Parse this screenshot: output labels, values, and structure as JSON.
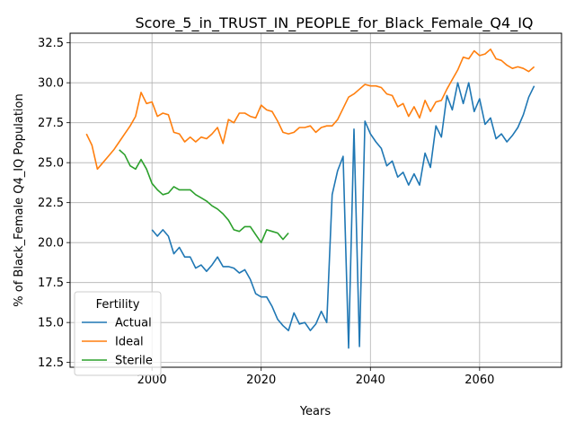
{
  "chart_data": {
    "type": "line",
    "title": "Score_5_in_TRUST_IN_PEOPLE_for_Black_Female_Q4_IQ",
    "xlabel": "Years",
    "ylabel": "% of Black_Female Q4_IQ Population",
    "xlim": [
      1985,
      2075
    ],
    "ylim": [
      12.2,
      33.1
    ],
    "xticks": [
      2000,
      2020,
      2040,
      2060
    ],
    "yticks": [
      12.5,
      15.0,
      17.5,
      20.0,
      22.5,
      25.0,
      27.5,
      30.0,
      32.5
    ],
    "grid": true,
    "legend": {
      "title": "Fertility",
      "placement": "lower-left"
    },
    "series": [
      {
        "name": "Actual",
        "color": "#1f77b4",
        "x": [
          2000,
          2001,
          2002,
          2003,
          2004,
          2005,
          2006,
          2007,
          2008,
          2009,
          2010,
          2011,
          2012,
          2013,
          2014,
          2015,
          2016,
          2017,
          2018,
          2019,
          2020,
          2021,
          2022,
          2023,
          2024,
          2025,
          2026,
          2027,
          2028,
          2029,
          2030,
          2031,
          2032,
          2033,
          2034,
          2035,
          2036,
          2037,
          2038,
          2039,
          2040,
          2041,
          2042,
          2043,
          2044,
          2045,
          2046,
          2047,
          2048,
          2049,
          2050,
          2051,
          2052,
          2053,
          2054,
          2055,
          2056,
          2057,
          2058,
          2059,
          2060,
          2061,
          2062,
          2063,
          2064,
          2065,
          2066,
          2067,
          2068,
          2069,
          2070
        ],
        "values": [
          20.8,
          20.4,
          20.8,
          20.4,
          19.3,
          19.7,
          19.1,
          19.1,
          18.4,
          18.6,
          18.2,
          18.6,
          19.1,
          18.5,
          18.5,
          18.4,
          18.1,
          18.3,
          17.7,
          16.8,
          16.6,
          16.6,
          16.0,
          15.2,
          14.8,
          14.5,
          15.6,
          14.9,
          15.0,
          14.5,
          14.9,
          15.7,
          15.0,
          23.0,
          24.5,
          25.4,
          13.4,
          27.1,
          13.5,
          27.6,
          26.8,
          26.3,
          25.9,
          24.8,
          25.1,
          24.1,
          24.4,
          23.6,
          24.3,
          23.6,
          25.6,
          24.7,
          27.3,
          26.6,
          29.2,
          28.3,
          30.0,
          28.7,
          30.0,
          28.2,
          29.0,
          27.4,
          27.8,
          26.5,
          26.8,
          26.3,
          26.7,
          27.2,
          28.0,
          29.1,
          29.8
        ]
      },
      {
        "name": "Ideal",
        "color": "#ff7f0e",
        "x": [
          1988,
          1989,
          1990,
          1991,
          1992,
          1993,
          1994,
          1995,
          1996,
          1997,
          1998,
          1999,
          2000,
          2001,
          2002,
          2003,
          2004,
          2005,
          2006,
          2007,
          2008,
          2009,
          2010,
          2011,
          2012,
          2013,
          2014,
          2015,
          2016,
          2017,
          2018,
          2019,
          2020,
          2021,
          2022,
          2023,
          2024,
          2025,
          2026,
          2027,
          2028,
          2029,
          2030,
          2031,
          2032,
          2033,
          2034,
          2035,
          2036,
          2037,
          2038,
          2039,
          2040,
          2041,
          2042,
          2043,
          2044,
          2045,
          2046,
          2047,
          2048,
          2049,
          2050,
          2051,
          2052,
          2053,
          2054,
          2055,
          2056,
          2057,
          2058,
          2059,
          2060,
          2061,
          2062,
          2063,
          2064,
          2065,
          2066,
          2067,
          2068,
          2069,
          2070
        ],
        "values": [
          26.8,
          26.1,
          24.6,
          25.0,
          25.4,
          25.8,
          26.3,
          26.8,
          27.3,
          27.9,
          29.4,
          28.7,
          28.8,
          27.9,
          28.1,
          28.0,
          26.9,
          26.8,
          26.3,
          26.6,
          26.3,
          26.6,
          26.5,
          26.8,
          27.2,
          26.2,
          27.7,
          27.5,
          28.1,
          28.1,
          27.9,
          27.8,
          28.6,
          28.3,
          28.2,
          27.6,
          26.9,
          26.8,
          26.9,
          27.2,
          27.2,
          27.3,
          26.9,
          27.2,
          27.3,
          27.3,
          27.7,
          28.4,
          29.1,
          29.3,
          29.6,
          29.9,
          29.8,
          29.8,
          29.7,
          29.3,
          29.2,
          28.5,
          28.7,
          27.9,
          28.5,
          27.8,
          28.9,
          28.2,
          28.8,
          28.9,
          29.6,
          30.2,
          30.8,
          31.6,
          31.5,
          32.0,
          31.7,
          31.8,
          32.1,
          31.5,
          31.4,
          31.1,
          30.9,
          31.0,
          30.9,
          30.7,
          31.0
        ]
      },
      {
        "name": "Sterile",
        "color": "#2ca02c",
        "x": [
          1994,
          1995,
          1996,
          1997,
          1998,
          1999,
          2000,
          2001,
          2002,
          2003,
          2004,
          2005,
          2006,
          2007,
          2008,
          2009,
          2010,
          2011,
          2012,
          2013,
          2014,
          2015,
          2016,
          2017,
          2018,
          2019,
          2020,
          2021,
          2022,
          2023,
          2024,
          2025
        ],
        "values": [
          25.8,
          25.5,
          24.8,
          24.6,
          25.2,
          24.6,
          23.7,
          23.3,
          23.0,
          23.1,
          23.5,
          23.3,
          23.3,
          23.3,
          23.0,
          22.8,
          22.6,
          22.3,
          22.1,
          21.8,
          21.4,
          20.8,
          20.7,
          21.0,
          21.0,
          20.5,
          20.0,
          20.8,
          20.7,
          20.6,
          20.2,
          20.6
        ]
      }
    ]
  }
}
